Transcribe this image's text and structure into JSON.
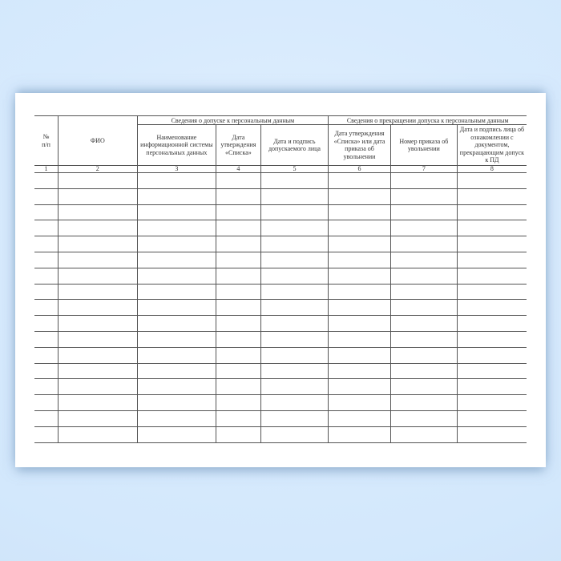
{
  "page": {
    "background_color": "#d3e8fc",
    "paper_color": "#ffffff"
  },
  "table": {
    "line_color": "#545454",
    "text_color": "#333333",
    "group_headers": [
      {
        "label": "Сведения о допуске к персональным данным"
      },
      {
        "label": "Сведения о прекращении допуска к персональным данным"
      }
    ],
    "columns": [
      {
        "number": "1",
        "label": "№\nп/п"
      },
      {
        "number": "2",
        "label": "ФИО"
      },
      {
        "number": "3",
        "label": "Наименование информационной системы персональных данных"
      },
      {
        "number": "4",
        "label": "Дата утверждения «Списка»"
      },
      {
        "number": "5",
        "label": "Дата и подпись допускаемого лица"
      },
      {
        "number": "6",
        "label": "Дата утверждения «Списка» или дата приказа об увольнении"
      },
      {
        "number": "7",
        "label": "Номер приказа об увольнении"
      },
      {
        "number": "8",
        "label": "Дата и подпись лица об ознакомлении с документом, прекращающим допуск к ПД"
      }
    ],
    "empty_row_count": 17
  }
}
